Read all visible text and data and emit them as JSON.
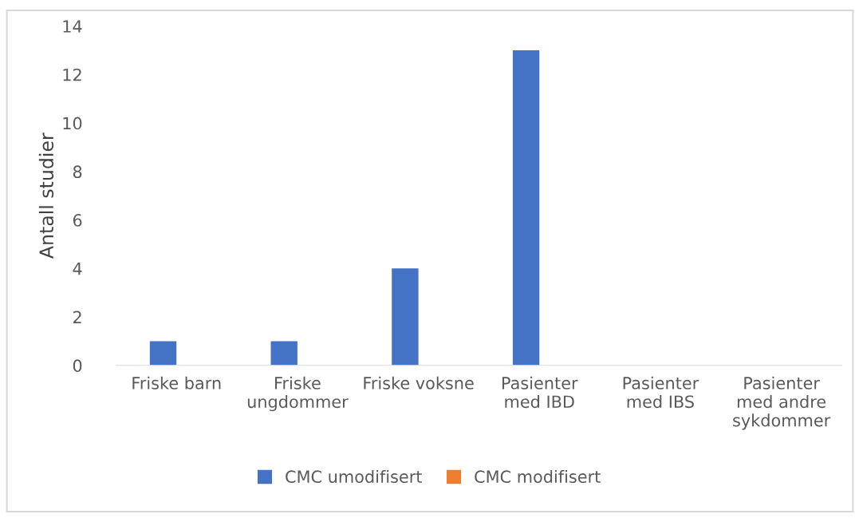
{
  "chart_data": {
    "type": "bar",
    "ylabel": "Antall studier",
    "categories": [
      "Friske barn",
      "Friske\nungdommer",
      "Friske voksne",
      "Pasienter\nmed IBD",
      "Pasienter\nmed IBS",
      "Pasienter\nmed andre\nsykdommer"
    ],
    "series": [
      {
        "name": "CMC umodifisert",
        "color": "#4472c4",
        "values": [
          1,
          1,
          4,
          13,
          0,
          0
        ]
      },
      {
        "name": "CMC modifisert",
        "color": "#ed7d31",
        "values": [
          0,
          0,
          0,
          0,
          0,
          0
        ]
      }
    ],
    "ylim": [
      0,
      14
    ],
    "yticks": [
      0,
      2,
      4,
      6,
      8,
      10,
      12,
      14
    ],
    "grid": false,
    "legend": "bottom"
  }
}
